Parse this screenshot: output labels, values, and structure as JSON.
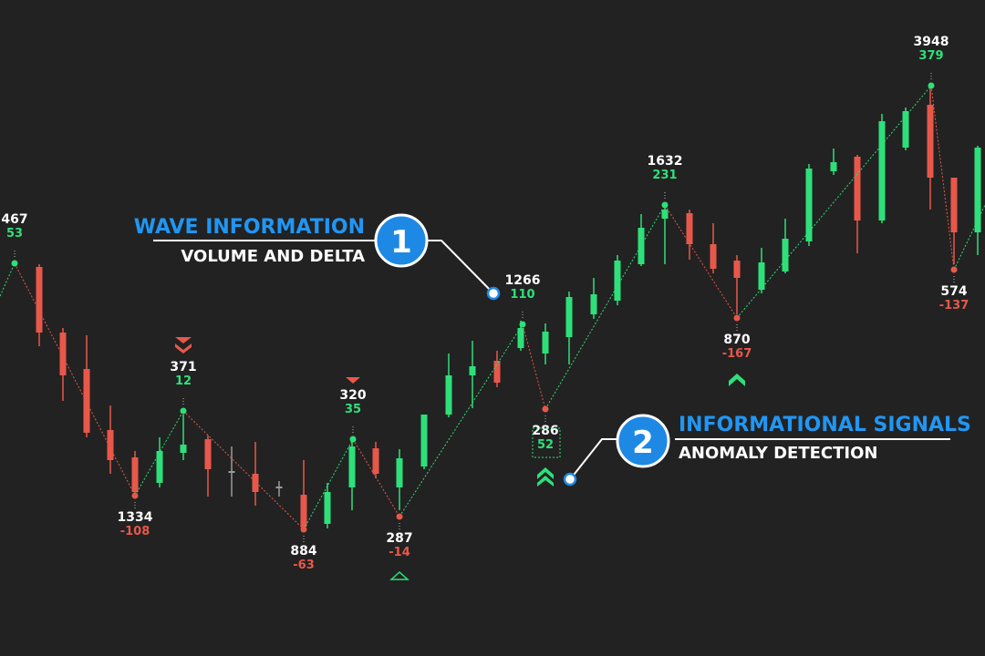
{
  "waves": [
    {
      "volume": 467,
      "delta": 53
    },
    {
      "volume": 1334,
      "delta": -108
    },
    {
      "volume": 371,
      "delta": 12
    },
    {
      "volume": 884,
      "delta": -63
    },
    {
      "volume": 320,
      "delta": 35
    },
    {
      "volume": 287,
      "delta": -14
    },
    {
      "volume": 1266,
      "delta": 110
    },
    {
      "volume": 286,
      "delta": 52
    },
    {
      "volume": 1632,
      "delta": 231
    },
    {
      "volume": 870,
      "delta": -167
    },
    {
      "volume": 3948,
      "delta": 379
    },
    {
      "volume": 574,
      "delta": -137
    }
  ],
  "callouts": [
    {
      "number": 1,
      "title": "WAVE INFORMATION",
      "subtitle": "VOLUME AND DELTA"
    },
    {
      "number": 2,
      "title": "INFORMATIONAL SIGNALS",
      "subtitle": "ANOMALY DETECTION"
    }
  ]
}
